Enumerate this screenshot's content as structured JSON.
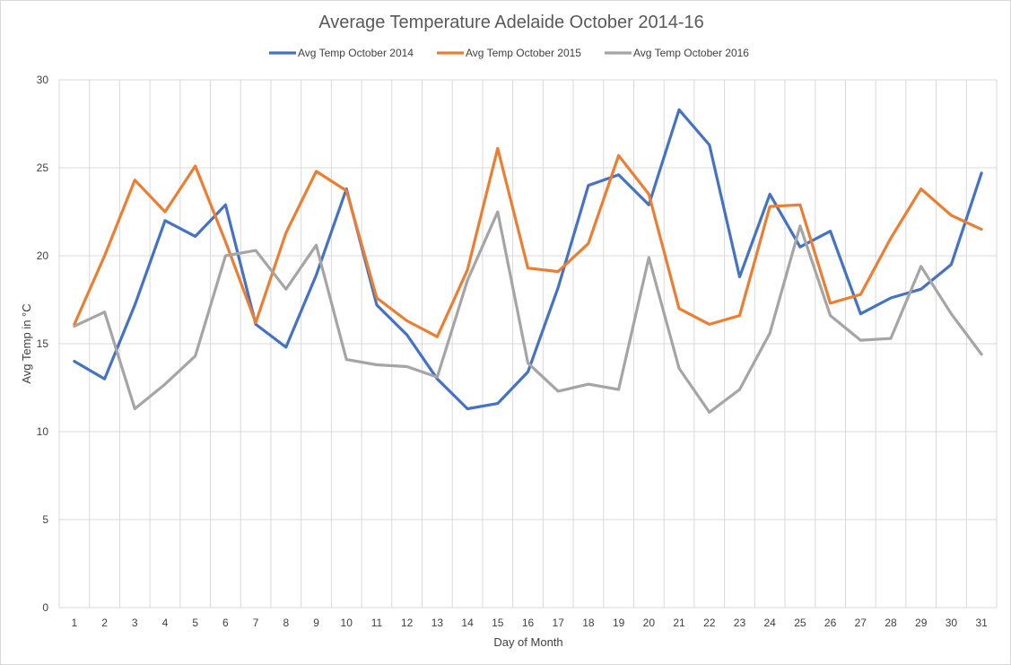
{
  "chart_data": {
    "type": "line",
    "title": "Average Temperature Adelaide October 2014-16",
    "xlabel": "Day of Month",
    "ylabel": "Avg Temp in °C",
    "ylim": [
      0,
      30
    ],
    "yticks": [
      0,
      5,
      10,
      15,
      20,
      25,
      30
    ],
    "grid": true,
    "legend_position": "top",
    "x": [
      1,
      2,
      3,
      4,
      5,
      6,
      7,
      8,
      9,
      10,
      11,
      12,
      13,
      14,
      15,
      16,
      17,
      18,
      19,
      20,
      21,
      22,
      23,
      24,
      25,
      26,
      27,
      28,
      29,
      30,
      31
    ],
    "series": [
      {
        "name": "Avg Temp October 2014",
        "color": "#4472c4",
        "values": [
          14.0,
          13.0,
          17.2,
          22.0,
          21.1,
          22.9,
          16.1,
          14.8,
          18.9,
          23.8,
          17.2,
          15.5,
          13.0,
          11.3,
          11.6,
          13.4,
          18.2,
          24.0,
          24.6,
          22.9,
          28.3,
          26.3,
          18.8,
          23.5,
          20.5,
          21.4,
          16.7,
          17.6,
          18.1,
          19.5,
          24.7
        ]
      },
      {
        "name": "Avg Temp October 2015",
        "color": "#ed7d31",
        "values": [
          16.1,
          20.0,
          24.3,
          22.5,
          25.1,
          20.8,
          16.2,
          21.3,
          24.8,
          23.7,
          17.6,
          16.3,
          15.4,
          19.2,
          26.1,
          19.3,
          19.1,
          20.7,
          25.7,
          23.5,
          17.0,
          16.1,
          16.6,
          22.8,
          22.9,
          17.3,
          17.8,
          21.0,
          23.8,
          22.3,
          21.5
        ]
      },
      {
        "name": "Avg Temp October 2016",
        "color": "#a5a5a5",
        "values": [
          16.0,
          16.8,
          11.3,
          12.7,
          14.3,
          20.0,
          20.3,
          18.1,
          20.6,
          14.1,
          13.8,
          13.7,
          13.1,
          18.6,
          22.5,
          13.9,
          12.3,
          12.7,
          12.4,
          19.9,
          13.6,
          11.1,
          12.4,
          15.6,
          21.7,
          16.6,
          15.2,
          15.3,
          19.4,
          16.7,
          14.4
        ]
      }
    ]
  }
}
